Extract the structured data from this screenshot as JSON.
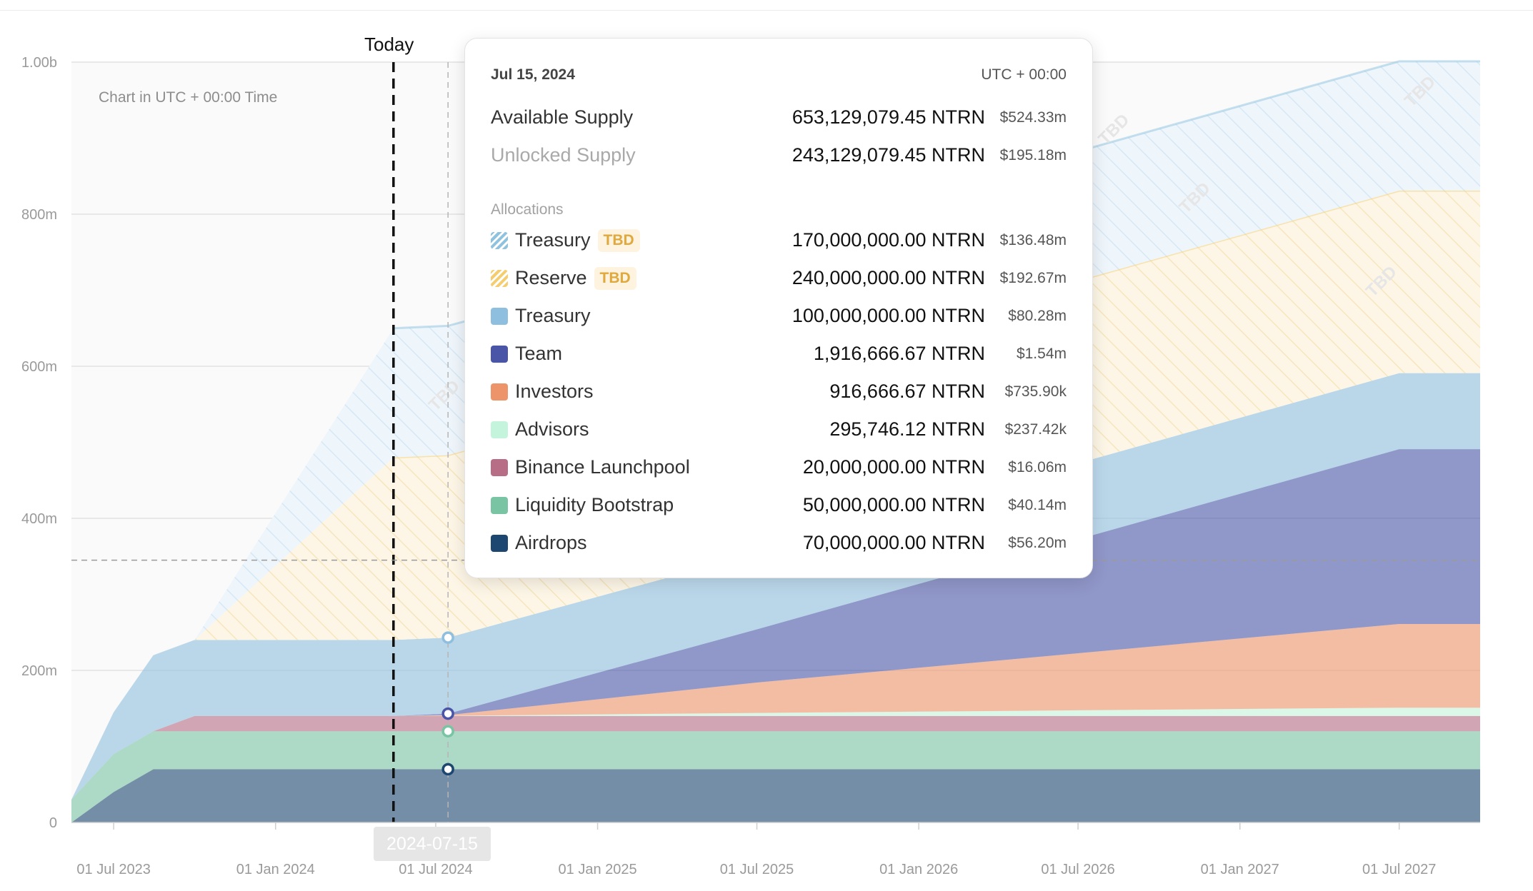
{
  "today_label": "Today",
  "hover_date_chip": "2024-07-15",
  "chart_note": "Chart in UTC + 00:00 Time",
  "tooltip": {
    "date": "Jul 15, 2024",
    "timezone": "UTC + 00:00",
    "available": {
      "label": "Available Supply",
      "amount": "653,129,079.45 NTRN",
      "usd": "$524.33m"
    },
    "unlocked": {
      "label": "Unlocked Supply",
      "amount": "243,129,079.45 NTRN",
      "usd": "$195.18m"
    },
    "allocations_label": "Allocations",
    "allocations": [
      {
        "name": "Treasury",
        "tbd": "TBD",
        "amount": "170,000,000.00 NTRN",
        "usd": "$136.48m",
        "color": "#8ec3e0",
        "hatched": true
      },
      {
        "name": "Reserve",
        "tbd": "TBD",
        "amount": "240,000,000.00 NTRN",
        "usd": "$192.67m",
        "color": "#f6cd6e",
        "hatched": true
      },
      {
        "name": "Treasury",
        "amount": "100,000,000.00 NTRN",
        "usd": "$80.28m",
        "color": "#8fbfdf"
      },
      {
        "name": "Team",
        "amount": "1,916,666.67 NTRN",
        "usd": "$1.54m",
        "color": "#4a55a8"
      },
      {
        "name": "Investors",
        "amount": "916,666.67 NTRN",
        "usd": "$735.90k",
        "color": "#ee946b"
      },
      {
        "name": "Advisors",
        "amount": "295,746.12 NTRN",
        "usd": "$237.42k",
        "color": "#c4f5dc"
      },
      {
        "name": "Binance Launchpool",
        "amount": "20,000,000.00 NTRN",
        "usd": "$16.06m",
        "color": "#b86d86"
      },
      {
        "name": "Liquidity Bootstrap",
        "amount": "50,000,000.00 NTRN",
        "usd": "$40.14m",
        "color": "#78c4a3"
      },
      {
        "name": "Airdrops",
        "amount": "70,000,000.00 NTRN",
        "usd": "$56.20m",
        "color": "#1d4670"
      }
    ]
  },
  "chart_data": {
    "type": "area",
    "stacked": true,
    "x": [
      "2023-05-14",
      "2023-07-01",
      "2023-08-15",
      "2023-10-01",
      "2024-05-14",
      "2024-07-15",
      "2025-07-01",
      "2026-07-01",
      "2027-07-01",
      "2027-10-01"
    ],
    "xticks": [
      "01 Jul 2023",
      "01 Jan 2024",
      "01 Jul 2024",
      "01 Jan 2025",
      "01 Jul 2025",
      "01 Jan 2026",
      "01 Jul 2026",
      "01 Jan 2027",
      "01 Jul 2027"
    ],
    "yticks": [
      "0",
      "200m",
      "400m",
      "600m",
      "800m",
      "1.00b"
    ],
    "ylim": [
      0,
      1000000000
    ],
    "today": "2024-05-14",
    "hover": "2024-07-15",
    "hover_value": 345000000,
    "tbd_label": "TBD",
    "series": [
      {
        "name": "Airdrops",
        "color": "#1d4670",
        "values": [
          0,
          40000000,
          70000000,
          70000000,
          70000000,
          70000000,
          70000000,
          70000000,
          70000000,
          70000000
        ]
      },
      {
        "name": "Liquidity Bootstrap",
        "color": "#78c4a3",
        "values": [
          30000000,
          50000000,
          50000000,
          50000000,
          50000000,
          50000000,
          50000000,
          50000000,
          50000000,
          50000000
        ]
      },
      {
        "name": "Binance Launchpool",
        "color": "#b86d86",
        "values": [
          0,
          0,
          0,
          20000000,
          20000000,
          20000000,
          20000000,
          20000000,
          20000000,
          20000000
        ]
      },
      {
        "name": "Advisors",
        "color": "#c4f5dc",
        "values": [
          0,
          0,
          0,
          0,
          0,
          300000,
          4000000,
          7500000,
          11000000,
          11000000
        ]
      },
      {
        "name": "Investors",
        "color": "#ee946b",
        "values": [
          0,
          0,
          0,
          0,
          0,
          900000,
          40000000,
          75000000,
          110000000,
          110000000
        ]
      },
      {
        "name": "Team",
        "color": "#4a55a8",
        "values": [
          0,
          0,
          0,
          0,
          0,
          1900000,
          70000000,
          150000000,
          230000000,
          230000000
        ]
      },
      {
        "name": "Treasury",
        "color": "#8fbfdf",
        "values": [
          0,
          55000000,
          100000000,
          100000000,
          100000000,
          100000000,
          100000000,
          100000000,
          100000000,
          100000000
        ]
      },
      {
        "name": "Reserve",
        "color": "#f6cd6e",
        "hatched": true,
        "values": [
          0,
          0,
          0,
          0,
          240000000,
          240000000,
          240000000,
          240000000,
          240000000,
          240000000
        ]
      },
      {
        "name": "Treasury",
        "color": "#8ec3e0",
        "hatched": true,
        "values": [
          0,
          0,
          0,
          0,
          170000000,
          170000000,
          170000000,
          170000000,
          170000000,
          170000000
        ]
      }
    ]
  }
}
